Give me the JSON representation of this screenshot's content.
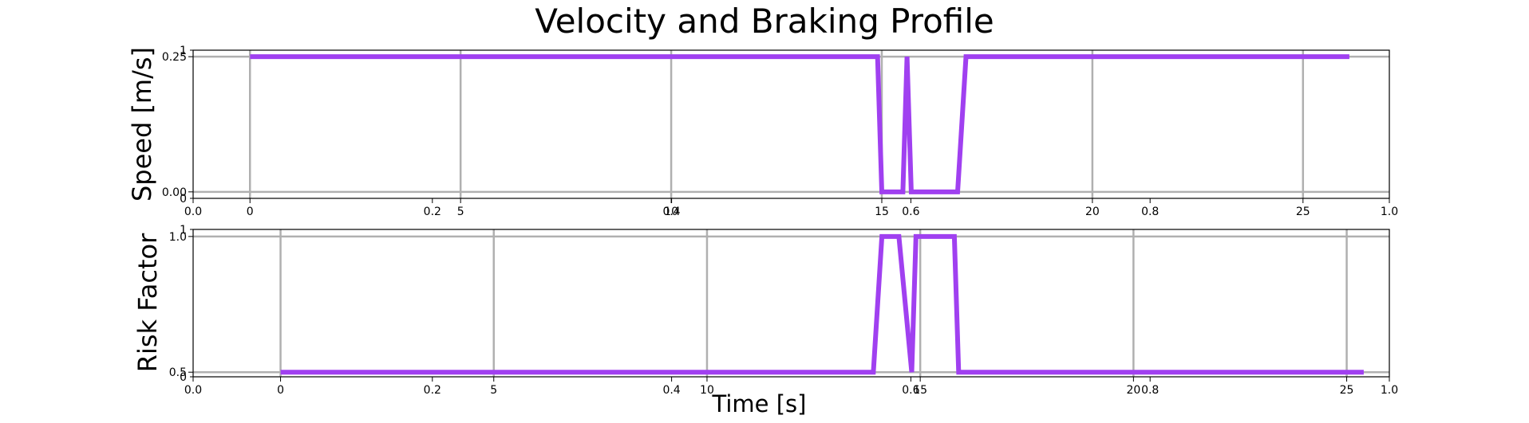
{
  "title": "Velocity and Braking Profile",
  "colors": {
    "line": "#a040f0",
    "grid": "#b0b0b0",
    "axes": "#000000",
    "background": "#ffffff"
  },
  "chart_data": [
    {
      "type": "line",
      "title": "Velocity and Braking Profile",
      "ylabel": "Speed [m/s]",
      "xlabel": "",
      "grid": true,
      "xlim": [
        -1.35,
        27.05
      ],
      "ylim": [
        -0.012,
        0.262
      ],
      "x_ticks": [
        0,
        5,
        10,
        15,
        20,
        25
      ],
      "y_ticks": [
        0.0,
        0.25
      ],
      "y_tick_labels": [
        "0.00",
        "0.25"
      ],
      "twin_x_ticks": [
        "0.0",
        "0.2",
        "0.4",
        "0.6",
        "0.8",
        "1.0"
      ],
      "twin_y_ticks": [
        "0",
        "1"
      ],
      "series": [
        {
          "x": [
            0,
            14.9,
            15.0,
            15.5,
            15.6,
            15.7,
            16.8,
            17.0,
            26.1
          ],
          "y": [
            0.25,
            0.25,
            0.0,
            0.0,
            0.25,
            0.0,
            0.0,
            0.25,
            0.25
          ]
        }
      ]
    },
    {
      "type": "line",
      "ylabel": "Risk Factor",
      "xlabel": "Time [s]",
      "grid": true,
      "xlim": [
        -2.05,
        26.0
      ],
      "ylim": [
        0.483,
        1.026
      ],
      "x_ticks": [
        0,
        5,
        10,
        15,
        20,
        25
      ],
      "y_ticks": [
        0.5,
        1.0
      ],
      "y_tick_labels": [
        "0.5",
        "1.0"
      ],
      "twin_x_ticks": [
        "0.0",
        "0.2",
        "0.4",
        "0.6",
        "0.8",
        "1.0"
      ],
      "twin_y_ticks": [
        "0",
        "1"
      ],
      "series": [
        {
          "x": [
            0,
            13.9,
            14.1,
            14.5,
            14.8,
            14.9,
            15.8,
            15.9,
            25.4
          ],
          "y": [
            0.5,
            0.5,
            1.0,
            1.0,
            0.5,
            1.0,
            1.0,
            0.5,
            0.5
          ]
        }
      ]
    }
  ]
}
